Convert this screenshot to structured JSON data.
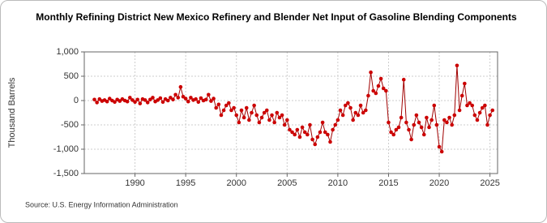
{
  "chart_data": {
    "type": "line",
    "title": "Monthly Refining District New Mexico Refinery and Blender Net Input of Gasoline Blending Components",
    "y_label": "Thousand Barrels",
    "source": "Source: U.S. Energy Information Administration",
    "xlim": [
      1985,
      2025.75
    ],
    "xticks": [
      1990,
      1995,
      2000,
      2005,
      2010,
      2015,
      2020,
      2025
    ],
    "ylim": [
      -1500,
      1000
    ],
    "yticks": [
      {
        "value": 1000,
        "label": "1,000"
      },
      500,
      0,
      -500,
      {
        "value": -1000,
        "label": "-1,000"
      },
      {
        "value": -1500,
        "label": "-1,500"
      }
    ],
    "grid": true,
    "color": "#cc0000",
    "x": [
      1986,
      1986.25,
      1986.5,
      1986.75,
      1987,
      1987.25,
      1987.5,
      1987.75,
      1988,
      1988.25,
      1988.5,
      1988.75,
      1989,
      1989.25,
      1989.5,
      1989.75,
      1990,
      1990.25,
      1990.5,
      1990.75,
      1991,
      1991.25,
      1991.5,
      1991.75,
      1992,
      1992.25,
      1992.5,
      1992.75,
      1993,
      1993.25,
      1993.5,
      1993.75,
      1994,
      1994.25,
      1994.5,
      1994.75,
      1995,
      1995.25,
      1995.5,
      1995.75,
      1996,
      1996.25,
      1996.5,
      1996.75,
      1997,
      1997.25,
      1997.5,
      1997.75,
      1998,
      1998.25,
      1998.5,
      1998.75,
      1999,
      1999.25,
      1999.5,
      1999.75,
      2000,
      2000.25,
      2000.5,
      2000.75,
      2001,
      2001.25,
      2001.5,
      2001.75,
      2002,
      2002.25,
      2002.5,
      2002.75,
      2003,
      2003.25,
      2003.5,
      2003.75,
      2004,
      2004.25,
      2004.5,
      2004.75,
      2005,
      2005.25,
      2005.5,
      2005.75,
      2006,
      2006.25,
      2006.5,
      2006.75,
      2007,
      2007.25,
      2007.5,
      2007.75,
      2008,
      2008.25,
      2008.5,
      2008.75,
      2009,
      2009.25,
      2009.5,
      2009.75,
      2010,
      2010.25,
      2010.5,
      2010.75,
      2011,
      2011.25,
      2011.5,
      2011.75,
      2012,
      2012.25,
      2012.5,
      2012.75,
      2013,
      2013.25,
      2013.5,
      2013.75,
      2014,
      2014.25,
      2014.5,
      2014.75,
      2015,
      2015.25,
      2015.5,
      2015.75,
      2016,
      2016.25,
      2016.5,
      2016.75,
      2017,
      2017.25,
      2017.5,
      2017.75,
      2018,
      2018.25,
      2018.5,
      2018.75,
      2019,
      2019.25,
      2019.5,
      2019.75,
      2020,
      2020.25,
      2020.5,
      2020.75,
      2021,
      2021.25,
      2021.5,
      2021.75,
      2022,
      2022.25,
      2022.5,
      2022.75,
      2023,
      2023.25,
      2023.5,
      2023.75,
      2024,
      2024.25,
      2024.5,
      2024.75,
      2025,
      2025.25
    ],
    "values": [
      20,
      -40,
      30,
      -10,
      10,
      -20,
      40,
      0,
      -30,
      20,
      -10,
      30,
      0,
      -20,
      60,
      10,
      -30,
      20,
      -60,
      30,
      10,
      -40,
      20,
      60,
      -20,
      10,
      50,
      -30,
      30,
      0,
      60,
      20,
      120,
      60,
      280,
      80,
      40,
      -20,
      60,
      10,
      30,
      -30,
      50,
      0,
      20,
      120,
      -10,
      40,
      -150,
      -80,
      -300,
      -200,
      -100,
      -50,
      -200,
      -150,
      -300,
      -450,
      -200,
      -350,
      -150,
      -400,
      -250,
      -100,
      -300,
      -450,
      -350,
      -250,
      -200,
      -400,
      -300,
      -450,
      -250,
      -350,
      -300,
      -500,
      -400,
      -600,
      -650,
      -700,
      -600,
      -750,
      -550,
      -650,
      -700,
      -500,
      -800,
      -900,
      -750,
      -650,
      -450,
      -650,
      -700,
      -850,
      -600,
      -500,
      -400,
      -200,
      -300,
      -100,
      -50,
      -150,
      -400,
      -250,
      -300,
      -100,
      -250,
      -200,
      100,
      580,
      200,
      150,
      300,
      450,
      250,
      200,
      -450,
      -650,
      -700,
      -600,
      -550,
      -350,
      430,
      -450,
      -600,
      -800,
      -500,
      -300,
      -450,
      -550,
      -700,
      -350,
      -550,
      -400,
      -100,
      -500,
      -950,
      -1050,
      -400,
      -450,
      -350,
      -500,
      -300,
      720,
      -200,
      100,
      350,
      -100,
      -50,
      -100,
      -300,
      -400,
      -250,
      -150,
      -100,
      -500,
      -300,
      -200
    ]
  }
}
